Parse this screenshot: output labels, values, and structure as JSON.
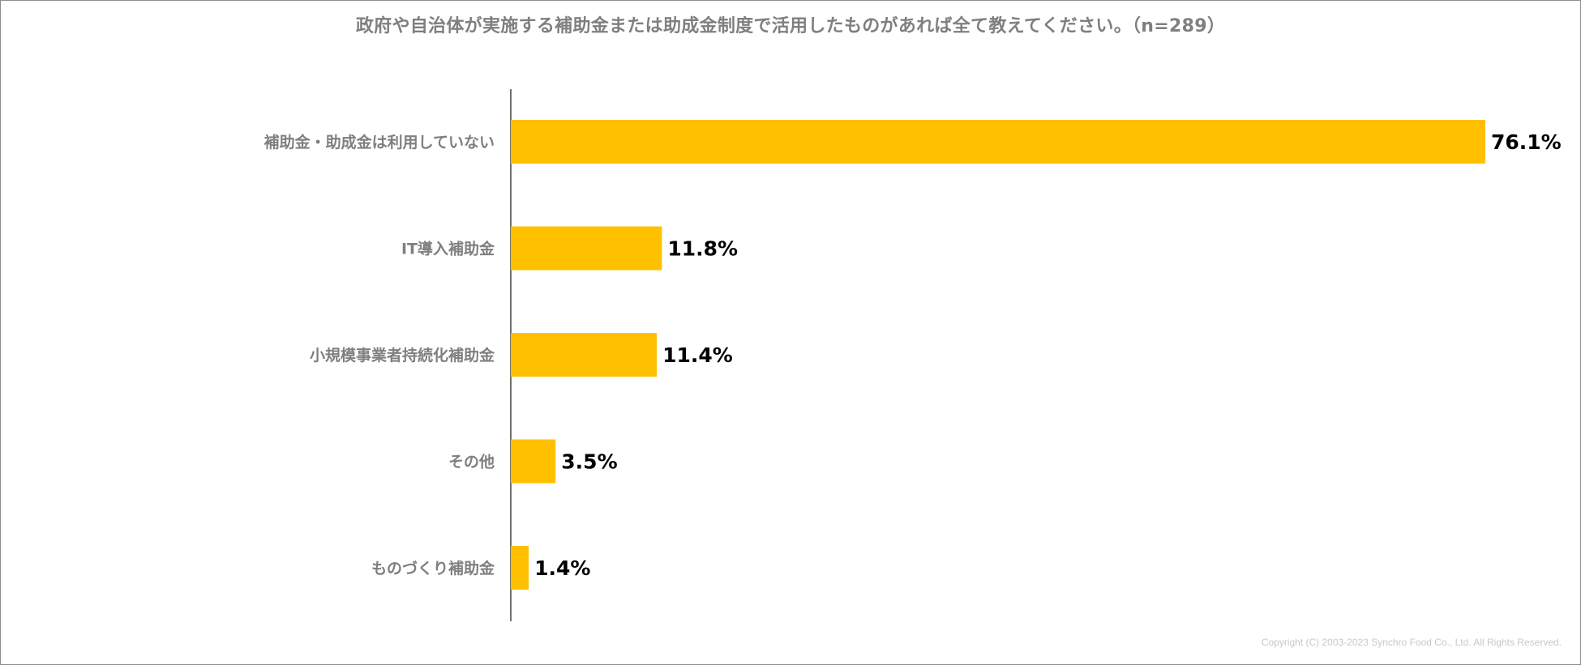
{
  "chart_data": {
    "type": "bar",
    "orientation": "horizontal",
    "title": "政府や自治体が実施する補助金または助成金制度で活用したものがあれば全て教えてください。（n=289）",
    "categories": [
      "補助金・助成金は利用していない",
      "IT導入補助金",
      "小規模事業者持続化補助金",
      "その他",
      "ものづくり補助金"
    ],
    "values": [
      76.1,
      11.8,
      11.4,
      3.5,
      1.4
    ],
    "value_labels": [
      "76.1%",
      "11.8%",
      "11.4%",
      "3.5%",
      "1.4%"
    ],
    "xlim": [
      0,
      76.1
    ],
    "bar_color": "#FFC000",
    "grid": false,
    "legend": "none"
  },
  "footer": {
    "copyright": "Copyright (C) 2003-2023 Synchro Food Co., Ltd. All Rights Reserved."
  }
}
